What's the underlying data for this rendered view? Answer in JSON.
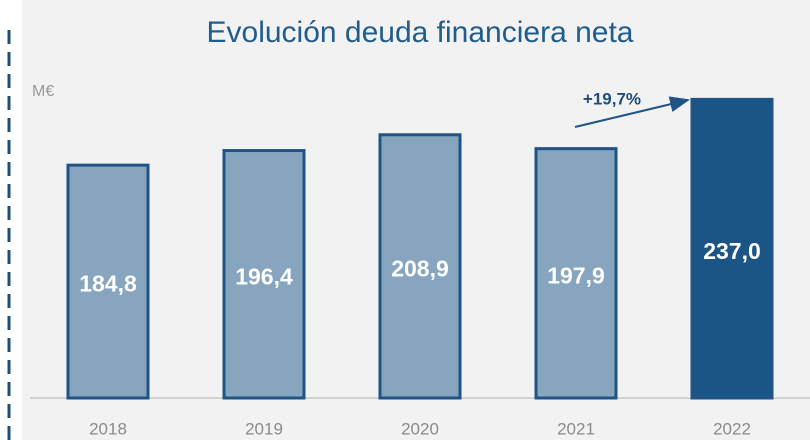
{
  "chart_data": {
    "type": "bar",
    "title": "Evolución deuda financiera neta",
    "unit_label": "M€",
    "categories": [
      "2018",
      "2019",
      "2020",
      "2021",
      "2022"
    ],
    "values": [
      184.8,
      196.4,
      208.9,
      197.9,
      237.0
    ],
    "value_labels": [
      "184,8",
      "196,4",
      "208,9",
      "197,9",
      "237,0"
    ],
    "colors": [
      "#87a5bf",
      "#87a5bf",
      "#87a5bf",
      "#87a5bf",
      "#1b5585"
    ],
    "border_color": "#1f5485",
    "annotation": "+19,7%",
    "ylim": [
      0,
      250
    ]
  }
}
